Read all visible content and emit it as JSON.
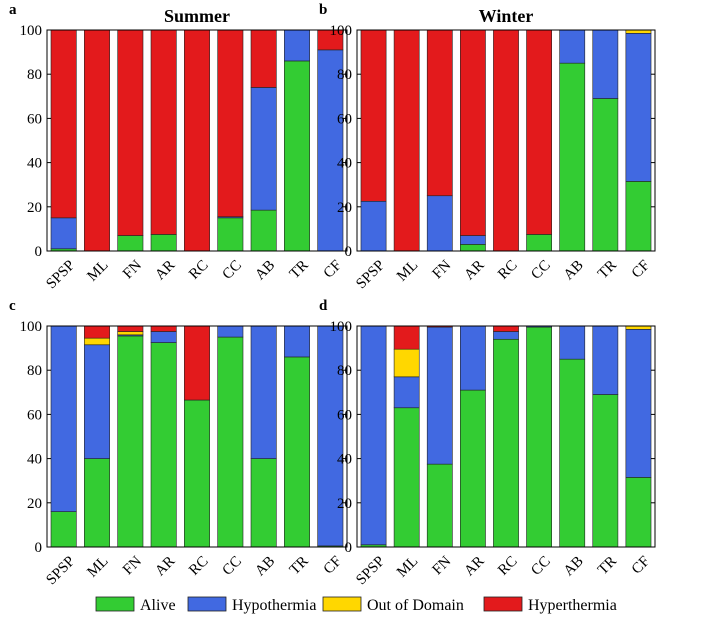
{
  "colors": {
    "Alive": "#33cc33",
    "Hypothermia": "#4169e1",
    "Out of Domain": "#ffd700",
    "Hyperthermia": "#e31a1c"
  },
  "legend": [
    "Alive",
    "Hypothermia",
    "Out of Domain",
    "Hyperthermia"
  ],
  "chart_data": [
    {
      "type": "bar",
      "stacked": true,
      "panel": "a",
      "title": "Summer",
      "categories": [
        "SPSP",
        "ML",
        "FN",
        "AR",
        "RC",
        "CC",
        "AB",
        "TR",
        "CF"
      ],
      "ylim": [
        0,
        100
      ],
      "yticks": [
        0,
        20,
        40,
        60,
        80,
        100
      ],
      "series": [
        {
          "name": "Alive",
          "values": [
            1,
            0,
            7,
            7.5,
            0,
            15,
            18.5,
            86,
            0
          ]
        },
        {
          "name": "Hypothermia",
          "values": [
            14,
            0,
            0,
            0,
            0,
            0.5,
            55.5,
            14,
            91
          ]
        },
        {
          "name": "Out of Domain",
          "values": [
            0,
            0,
            0,
            0,
            0,
            0,
            0,
            0,
            0
          ]
        },
        {
          "name": "Hyperthermia",
          "values": [
            85,
            100,
            93,
            92.5,
            100,
            84.5,
            26,
            0,
            9
          ]
        }
      ]
    },
    {
      "type": "bar",
      "stacked": true,
      "panel": "b",
      "title": "Winter",
      "categories": [
        "SPSP",
        "ML",
        "FN",
        "AR",
        "RC",
        "CC",
        "AB",
        "TR",
        "CF"
      ],
      "ylim": [
        0,
        100
      ],
      "yticks": [
        0,
        20,
        40,
        60,
        80,
        100
      ],
      "series": [
        {
          "name": "Alive",
          "values": [
            0,
            0,
            0,
            3,
            0,
            7.5,
            85,
            69,
            31.5
          ]
        },
        {
          "name": "Hypothermia",
          "values": [
            22.5,
            0,
            25,
            4,
            0,
            0,
            15,
            31,
            67
          ]
        },
        {
          "name": "Out of Domain",
          "values": [
            0,
            0,
            0,
            0,
            0,
            0,
            0,
            0,
            1.5
          ]
        },
        {
          "name": "Hyperthermia",
          "values": [
            77.5,
            100,
            75,
            93,
            100,
            92.5,
            0,
            0,
            0
          ]
        }
      ]
    },
    {
      "type": "bar",
      "stacked": true,
      "panel": "c",
      "title": "",
      "categories": [
        "SPSP",
        "ML",
        "FN",
        "AR",
        "RC",
        "CC",
        "AB",
        "TR",
        "CF"
      ],
      "ylim": [
        0,
        100
      ],
      "yticks": [
        0,
        20,
        40,
        60,
        80,
        100
      ],
      "series": [
        {
          "name": "Alive",
          "values": [
            16,
            40,
            95.5,
            92.5,
            66.5,
            95,
            40,
            86,
            0.5
          ]
        },
        {
          "name": "Hypothermia",
          "values": [
            84,
            51.5,
            0.5,
            5,
            0,
            5,
            60,
            14,
            99.5
          ]
        },
        {
          "name": "Out of Domain",
          "values": [
            0,
            3,
            1.5,
            0,
            0,
            0,
            0,
            0,
            0
          ]
        },
        {
          "name": "Hyperthermia",
          "values": [
            0,
            5.5,
            2.5,
            2.5,
            33.5,
            0,
            0,
            0,
            0
          ]
        }
      ]
    },
    {
      "type": "bar",
      "stacked": true,
      "panel": "d",
      "title": "",
      "categories": [
        "SPSP",
        "ML",
        "FN",
        "AR",
        "RC",
        "CC",
        "AB",
        "TR",
        "CF"
      ],
      "ylim": [
        0,
        100
      ],
      "yticks": [
        0,
        20,
        40,
        60,
        80,
        100
      ],
      "series": [
        {
          "name": "Alive",
          "values": [
            1,
            63,
            37.5,
            71,
            94,
            99.5,
            85,
            69,
            31.5
          ]
        },
        {
          "name": "Hypothermia",
          "values": [
            99,
            14,
            62,
            29,
            3.5,
            0.5,
            15,
            31,
            67
          ]
        },
        {
          "name": "Out of Domain",
          "values": [
            0,
            12.5,
            0,
            0,
            0,
            0,
            0,
            0,
            1.5
          ]
        },
        {
          "name": "Hyperthermia",
          "values": [
            0,
            10.5,
            0.5,
            0,
            2.5,
            0,
            0,
            0,
            0
          ]
        }
      ]
    }
  ]
}
